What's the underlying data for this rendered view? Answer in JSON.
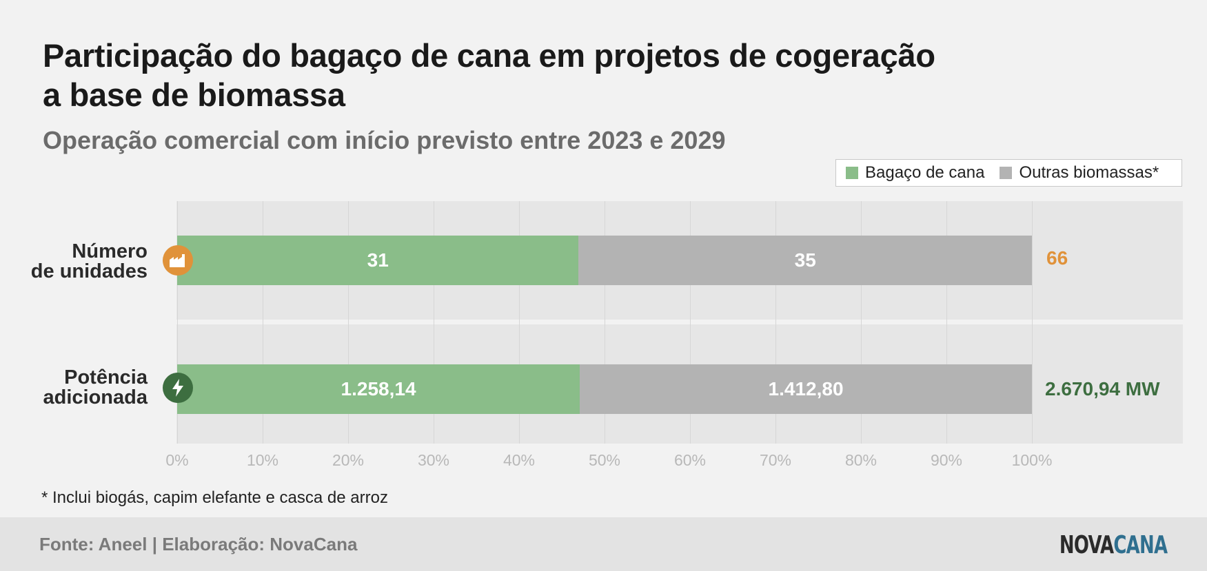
{
  "title_line1": "Participação do bagaço de cana em projetos de cogeração",
  "title_line2": "a base de biomassa",
  "subtitle": "Operação comercial com início previsto entre 2023 e 2029",
  "legend": {
    "bagaco": "Bagaço de cana",
    "outras": "Outras biomassas*"
  },
  "rows": {
    "unidades": {
      "label_line1": "Número",
      "label_line2": "de unidades",
      "bagaco_label": "31",
      "outras_label": "35",
      "total_label": "66",
      "icon": "factory-icon"
    },
    "potencia": {
      "label_line1": "Potência",
      "label_line2": "adicionada",
      "bagaco_label": "1.258,14",
      "outras_label": "1.412,80",
      "total_label": "2.670,94 MW",
      "icon": "lightning-icon"
    }
  },
  "ticks": [
    "0%",
    "10%",
    "20%",
    "30%",
    "40%",
    "50%",
    "60%",
    "70%",
    "80%",
    "90%",
    "100%"
  ],
  "note": "* Inclui biogás, capim elefante e casca de arroz",
  "footer": {
    "source": "Fonte: Aneel | Elaboração: NovaCana",
    "logo_part1": "NOVA",
    "logo_part2": "CANA"
  },
  "colors": {
    "bagaco": "#8abd89",
    "outras": "#b3b3b3",
    "unidades_accent": "#e0923a",
    "potencia_accent": "#3d6e40",
    "logo_dark": "#2b2b2b",
    "logo_accent": "#2f6f8f"
  },
  "chart_data": {
    "type": "bar",
    "orientation": "horizontal",
    "stacked": "percent",
    "categories": [
      "Número de unidades",
      "Potência adicionada"
    ],
    "series": [
      {
        "name": "Bagaço de cana",
        "values": [
          31,
          1258.14
        ]
      },
      {
        "name": "Outras biomassas*",
        "values": [
          35,
          1412.8
        ]
      }
    ],
    "totals": [
      66,
      2670.94
    ],
    "total_unit": "MW",
    "xlim": [
      0,
      100
    ],
    "x_unit": "%",
    "legend": "top-right",
    "grid": true
  }
}
